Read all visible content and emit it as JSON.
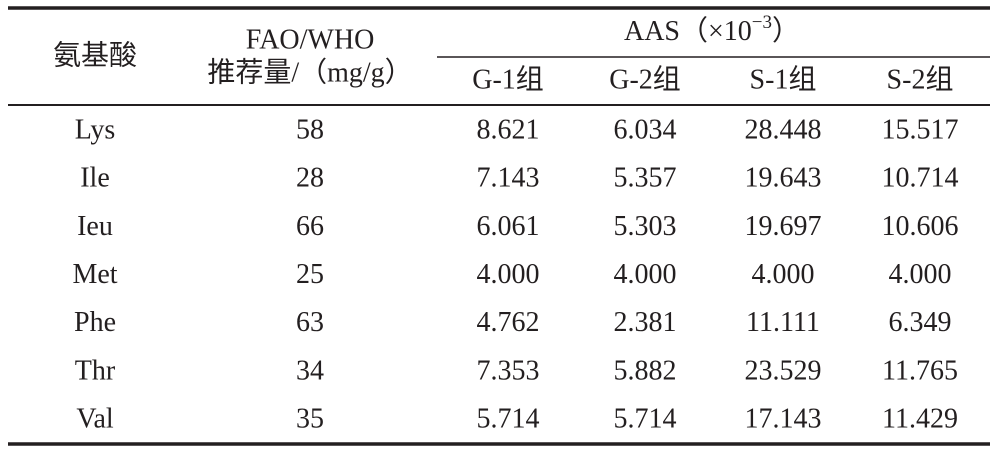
{
  "table": {
    "header": {
      "amino_acid": "氨基酸",
      "fao_who": [
        "FAO/WHO",
        "推荐量/（mg/g）"
      ],
      "aas": {
        "prefix": "AAS（×10",
        "exponent": "−3",
        "suffix": "）"
      },
      "groups": [
        "G-1组",
        "G-2组",
        "S-1组",
        "S-2组"
      ]
    },
    "rows": [
      [
        "Lys",
        "58",
        "8.621",
        "6.034",
        "28.448",
        "15.517"
      ],
      [
        "Ile",
        "28",
        "7.143",
        "5.357",
        "19.643",
        "10.714"
      ],
      [
        "Ieu",
        "66",
        "6.061",
        "5.303",
        "19.697",
        "10.606"
      ],
      [
        "Met",
        "25",
        "4.000",
        "4.000",
        "4.000",
        "4.000"
      ],
      [
        "Phe",
        "63",
        "4.762",
        "2.381",
        "11.111",
        "6.349"
      ],
      [
        "Thr",
        "34",
        "7.353",
        "5.882",
        "23.529",
        "11.765"
      ],
      [
        "Val",
        "35",
        "5.714",
        "5.714",
        "17.143",
        "11.429"
      ]
    ]
  }
}
